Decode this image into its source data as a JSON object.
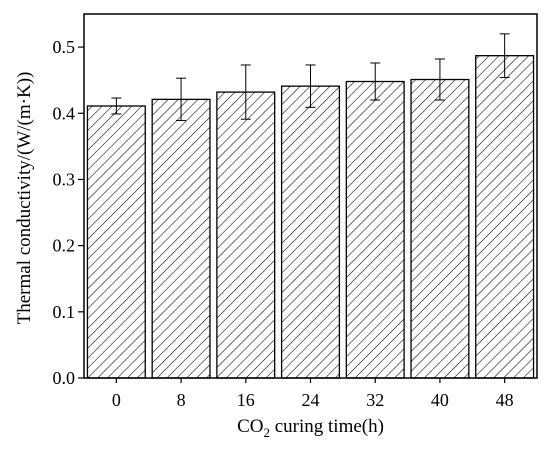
{
  "chart_data": {
    "type": "bar",
    "categories": [
      "0",
      "8",
      "16",
      "24",
      "32",
      "40",
      "48"
    ],
    "values": [
      0.411,
      0.421,
      0.432,
      0.441,
      0.448,
      0.451,
      0.487
    ],
    "errors": [
      0.012,
      0.032,
      0.041,
      0.032,
      0.028,
      0.031,
      0.033
    ],
    "xlabel": {
      "pre": "CO",
      "sub": "2",
      "post": " curing time(h)"
    },
    "ylabel": "Thermal conductivity/(W/(m·K))",
    "ylim": [
      0.0,
      0.55
    ],
    "yticks": [
      0.0,
      0.1,
      0.2,
      0.3,
      0.4,
      0.5
    ],
    "ytick_labels": [
      "0.0",
      "0.1",
      "0.2",
      "0.3",
      "0.4",
      "0.5"
    ],
    "grid": false,
    "bar_fill": "hatched",
    "colors": {
      "bar_stroke": "#000000",
      "hatch": "#000000",
      "background": "#ffffff"
    }
  }
}
